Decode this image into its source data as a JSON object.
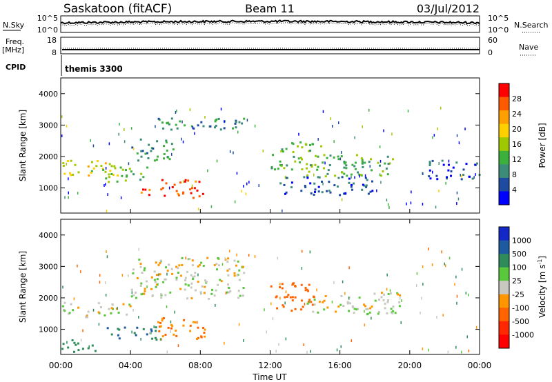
{
  "header": {
    "station": "Saskatoon (fitACF)",
    "beam": "Beam 11",
    "date": "03/Jul/2012"
  },
  "noise_panel": {
    "left_label": "N.Sky",
    "right_label": "N.Search",
    "left_ticks": [
      "10^5",
      "10^0"
    ],
    "right_ticks": [
      "10^5",
      "10^0"
    ]
  },
  "freq_panel": {
    "left_label_1": "Freq.",
    "left_label_2": "[MHz]",
    "right_label": "Nave",
    "left_ticks": [
      "18",
      "8"
    ],
    "right_ticks": [
      "60",
      "0"
    ]
  },
  "cpid": {
    "label": "CPID",
    "value": "themis 3300"
  },
  "power_panel": {
    "ylabel": "Slant Range [km]",
    "yticks": [
      "4000",
      "3000",
      "2000",
      "1000"
    ]
  },
  "velocity_panel": {
    "ylabel": "Slant Range [km]",
    "yticks": [
      "4000",
      "3000",
      "2000",
      "1000"
    ]
  },
  "x_axis": {
    "label": "Time UT",
    "ticks": [
      "00:00",
      "04:00",
      "08:00",
      "12:00",
      "16:00",
      "20:00",
      "00:00"
    ]
  },
  "power_colorbar": {
    "label": "Power [dB]",
    "ticks": [
      "28",
      "24",
      "20",
      "16",
      "12",
      "8",
      "4"
    ],
    "colors": [
      "#ff0000",
      "#ff5a00",
      "#ffa000",
      "#ffd000",
      "#a0c800",
      "#3cb03c",
      "#3c8c78",
      "#1e4ba0",
      "#0000ff"
    ]
  },
  "velocity_colorbar": {
    "label_main": "Velocity [m s",
    "label_sup": "-1",
    "label_end": "]",
    "ticks": [
      "1000",
      "500",
      "100",
      "25",
      "-25",
      "-100",
      "-500",
      "-1000"
    ],
    "colors": [
      "#1428c8",
      "#1e5aa0",
      "#2d8c5a",
      "#5ac83c",
      "#c8c8c0",
      "#ff9600",
      "#ff6400",
      "#ff2800",
      "#ff0000"
    ]
  },
  "chart_data": {
    "type": "heatmap",
    "x_range": [
      "00:00",
      "00:00"
    ],
    "y_range_km": [
      200,
      4500
    ],
    "power_bands": [
      {
        "t": [
          0,
          3.5
        ],
        "r": [
          1400,
          1900
        ],
        "v": 18
      },
      {
        "t": [
          2.5,
          5
        ],
        "r": [
          1200,
          1700
        ],
        "v": 14
      },
      {
        "t": [
          4,
          6.5
        ],
        "r": [
          1900,
          2600
        ],
        "v": 10
      },
      {
        "t": [
          5.5,
          10.5
        ],
        "r": [
          2800,
          3250
        ],
        "v": 9
      },
      {
        "t": [
          5.7,
          8.3
        ],
        "r": [
          700,
          1300
        ],
        "v": 28
      },
      {
        "t": [
          4.5,
          5.5
        ],
        "r": [
          800,
          1100
        ],
        "v": 26
      },
      {
        "t": [
          12,
          15
        ],
        "r": [
          1600,
          2500
        ],
        "v": 14
      },
      {
        "t": [
          14,
          19
        ],
        "r": [
          1400,
          2100
        ],
        "v": 12
      },
      {
        "t": [
          12.5,
          18
        ],
        "r": [
          800,
          1400
        ],
        "v": 6
      },
      {
        "t": [
          21,
          24
        ],
        "r": [
          1300,
          1900
        ],
        "v": 6
      }
    ],
    "velocity_bands": [
      {
        "t": [
          0,
          4
        ],
        "r": [
          1400,
          1900
        ],
        "v": 0
      },
      {
        "t": [
          4,
          10.5
        ],
        "r": [
          2000,
          3300
        ],
        "v": 0
      },
      {
        "t": [
          5.5,
          8.3
        ],
        "r": [
          700,
          1400
        ],
        "v": -100
      },
      {
        "t": [
          2.5,
          5.5
        ],
        "r": [
          700,
          1100
        ],
        "v": 300
      },
      {
        "t": [
          12,
          14.5
        ],
        "r": [
          1600,
          2500
        ],
        "v": -200
      },
      {
        "t": [
          14,
          19.5
        ],
        "r": [
          1500,
          2200
        ],
        "v": 0
      },
      {
        "t": [
          0,
          2
        ],
        "r": [
          300,
          700
        ],
        "v": 200
      }
    ]
  }
}
